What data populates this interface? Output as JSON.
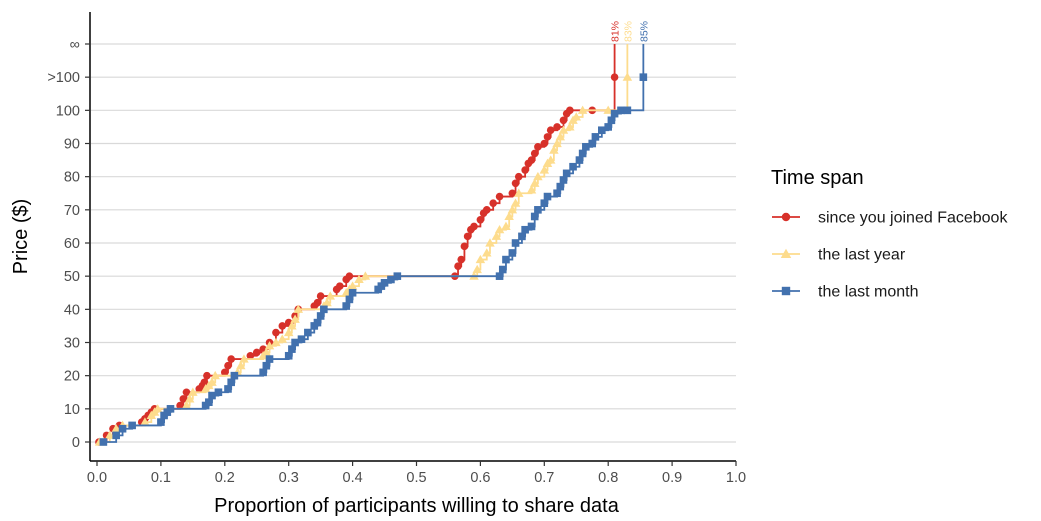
{
  "chart_data": {
    "type": "line",
    "step": true,
    "xlabel": "Proportion of participants willing to share data",
    "ylabel": "Price ($)",
    "xlim": [
      0,
      1
    ],
    "x_ticks": [
      0,
      0.1,
      0.2,
      0.3,
      0.4,
      0.5,
      0.6,
      0.7,
      0.8,
      0.9,
      1
    ],
    "x_tick_labels": [
      "0.0",
      "0.1",
      "0.2",
      "0.3",
      "0.4",
      "0.5",
      "0.6",
      "0.7",
      "0.8",
      "0.9",
      "1.0"
    ],
    "y_ticks": [
      0,
      10,
      20,
      30,
      40,
      50,
      60,
      70,
      80,
      90,
      100,
      110,
      120
    ],
    "y_tick_labels": [
      "0",
      "10",
      "20",
      "30",
      "40",
      "50",
      "60",
      "70",
      "80",
      "90",
      "100",
      ">100",
      "∞"
    ],
    "y_note": ">100 and ∞ are categorical levels drawn at positions 110 and 120",
    "grid": "horizontal",
    "legend": {
      "title": "Time span",
      "position": "right"
    },
    "series": [
      {
        "name": "since you joined Facebook",
        "color": "#d7312a",
        "marker": "circle",
        "end_label": "81%",
        "points": [
          [
            0.003,
            0
          ],
          [
            0.015,
            2
          ],
          [
            0.025,
            4
          ],
          [
            0.035,
            5
          ],
          [
            0.07,
            6
          ],
          [
            0.075,
            7
          ],
          [
            0.08,
            8
          ],
          [
            0.085,
            9
          ],
          [
            0.09,
            10
          ],
          [
            0.13,
            11
          ],
          [
            0.135,
            13
          ],
          [
            0.14,
            15
          ],
          [
            0.16,
            16
          ],
          [
            0.165,
            17
          ],
          [
            0.168,
            18
          ],
          [
            0.172,
            20
          ],
          [
            0.2,
            21
          ],
          [
            0.205,
            23
          ],
          [
            0.21,
            25
          ],
          [
            0.24,
            26
          ],
          [
            0.25,
            27
          ],
          [
            0.26,
            28
          ],
          [
            0.27,
            30
          ],
          [
            0.28,
            33
          ],
          [
            0.29,
            35
          ],
          [
            0.3,
            36
          ],
          [
            0.31,
            38
          ],
          [
            0.315,
            40
          ],
          [
            0.34,
            41
          ],
          [
            0.345,
            42
          ],
          [
            0.35,
            44
          ],
          [
            0.375,
            46
          ],
          [
            0.38,
            47
          ],
          [
            0.39,
            49
          ],
          [
            0.395,
            50
          ],
          [
            0.56,
            50
          ],
          [
            0.565,
            53
          ],
          [
            0.57,
            55
          ],
          [
            0.575,
            59
          ],
          [
            0.58,
            62
          ],
          [
            0.585,
            64
          ],
          [
            0.59,
            65
          ],
          [
            0.6,
            67
          ],
          [
            0.605,
            69
          ],
          [
            0.61,
            70
          ],
          [
            0.62,
            72
          ],
          [
            0.63,
            74
          ],
          [
            0.65,
            75
          ],
          [
            0.655,
            78
          ],
          [
            0.66,
            80
          ],
          [
            0.67,
            82
          ],
          [
            0.675,
            84
          ],
          [
            0.68,
            85
          ],
          [
            0.685,
            87
          ],
          [
            0.69,
            89
          ],
          [
            0.7,
            90
          ],
          [
            0.705,
            92
          ],
          [
            0.71,
            94
          ],
          [
            0.72,
            95
          ],
          [
            0.73,
            97
          ],
          [
            0.735,
            99
          ],
          [
            0.74,
            100
          ],
          [
            0.775,
            100
          ],
          [
            0.81,
            110
          ]
        ]
      },
      {
        "name": "the last year",
        "color": "#fddc8d",
        "marker": "triangle",
        "end_label": "83%",
        "points": [
          [
            0.004,
            0
          ],
          [
            0.02,
            2
          ],
          [
            0.03,
            4
          ],
          [
            0.04,
            5
          ],
          [
            0.075,
            6
          ],
          [
            0.085,
            8
          ],
          [
            0.09,
            9
          ],
          [
            0.095,
            10
          ],
          [
            0.14,
            11
          ],
          [
            0.145,
            13
          ],
          [
            0.15,
            15
          ],
          [
            0.17,
            16
          ],
          [
            0.175,
            17
          ],
          [
            0.18,
            18
          ],
          [
            0.185,
            20
          ],
          [
            0.22,
            21
          ],
          [
            0.225,
            23
          ],
          [
            0.23,
            25
          ],
          [
            0.26,
            26
          ],
          [
            0.265,
            27
          ],
          [
            0.27,
            29
          ],
          [
            0.28,
            30
          ],
          [
            0.29,
            31
          ],
          [
            0.3,
            33
          ],
          [
            0.305,
            35
          ],
          [
            0.31,
            37
          ],
          [
            0.315,
            40
          ],
          [
            0.355,
            41
          ],
          [
            0.36,
            42
          ],
          [
            0.365,
            44
          ],
          [
            0.39,
            45
          ],
          [
            0.395,
            46
          ],
          [
            0.4,
            47
          ],
          [
            0.41,
            49
          ],
          [
            0.42,
            50
          ],
          [
            0.59,
            50
          ],
          [
            0.595,
            52
          ],
          [
            0.6,
            55
          ],
          [
            0.61,
            57
          ],
          [
            0.615,
            60
          ],
          [
            0.625,
            62
          ],
          [
            0.63,
            64
          ],
          [
            0.64,
            65
          ],
          [
            0.645,
            68
          ],
          [
            0.65,
            70
          ],
          [
            0.655,
            72
          ],
          [
            0.66,
            75
          ],
          [
            0.68,
            76
          ],
          [
            0.685,
            78
          ],
          [
            0.69,
            80
          ],
          [
            0.7,
            82
          ],
          [
            0.705,
            84
          ],
          [
            0.71,
            85
          ],
          [
            0.715,
            88
          ],
          [
            0.72,
            90
          ],
          [
            0.725,
            92
          ],
          [
            0.73,
            94
          ],
          [
            0.74,
            95
          ],
          [
            0.745,
            97
          ],
          [
            0.75,
            98
          ],
          [
            0.76,
            100
          ],
          [
            0.8,
            100
          ],
          [
            0.83,
            110
          ]
        ]
      },
      {
        "name": "the last month",
        "color": "#4271ae",
        "marker": "square",
        "end_label": "85%",
        "points": [
          [
            0.01,
            0
          ],
          [
            0.03,
            2
          ],
          [
            0.04,
            4
          ],
          [
            0.055,
            5
          ],
          [
            0.1,
            6
          ],
          [
            0.105,
            8
          ],
          [
            0.11,
            9
          ],
          [
            0.115,
            10
          ],
          [
            0.17,
            11
          ],
          [
            0.175,
            12
          ],
          [
            0.18,
            14
          ],
          [
            0.19,
            15
          ],
          [
            0.205,
            16
          ],
          [
            0.21,
            18
          ],
          [
            0.215,
            20
          ],
          [
            0.26,
            21
          ],
          [
            0.265,
            23
          ],
          [
            0.27,
            25
          ],
          [
            0.3,
            26
          ],
          [
            0.305,
            28
          ],
          [
            0.31,
            30
          ],
          [
            0.32,
            31
          ],
          [
            0.33,
            33
          ],
          [
            0.34,
            35
          ],
          [
            0.345,
            36
          ],
          [
            0.35,
            38
          ],
          [
            0.355,
            40
          ],
          [
            0.39,
            41
          ],
          [
            0.395,
            43
          ],
          [
            0.4,
            45
          ],
          [
            0.44,
            46
          ],
          [
            0.445,
            47
          ],
          [
            0.45,
            48
          ],
          [
            0.46,
            49
          ],
          [
            0.47,
            50
          ],
          [
            0.63,
            50
          ],
          [
            0.635,
            52
          ],
          [
            0.64,
            55
          ],
          [
            0.65,
            57
          ],
          [
            0.655,
            60
          ],
          [
            0.665,
            62
          ],
          [
            0.67,
            64
          ],
          [
            0.68,
            65
          ],
          [
            0.685,
            68
          ],
          [
            0.69,
            70
          ],
          [
            0.7,
            72
          ],
          [
            0.705,
            74
          ],
          [
            0.72,
            75
          ],
          [
            0.725,
            77
          ],
          [
            0.73,
            79
          ],
          [
            0.735,
            81
          ],
          [
            0.745,
            83
          ],
          [
            0.755,
            85
          ],
          [
            0.76,
            87
          ],
          [
            0.765,
            89
          ],
          [
            0.775,
            90
          ],
          [
            0.78,
            92
          ],
          [
            0.79,
            94
          ],
          [
            0.8,
            95
          ],
          [
            0.805,
            97
          ],
          [
            0.81,
            99
          ],
          [
            0.82,
            100
          ],
          [
            0.83,
            100
          ],
          [
            0.855,
            110
          ]
        ]
      }
    ]
  }
}
